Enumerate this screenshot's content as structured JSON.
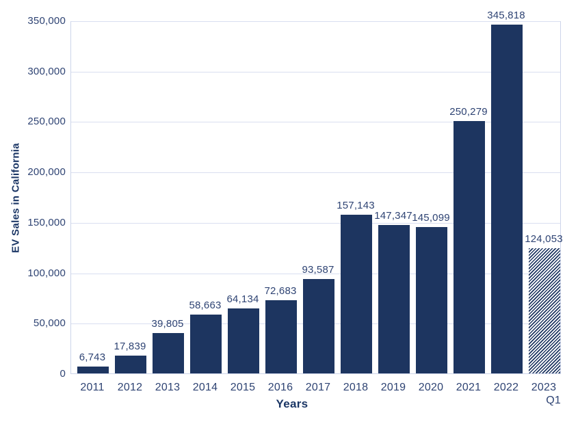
{
  "chart_data": {
    "type": "bar",
    "title": "",
    "categories": [
      "2011",
      "2012",
      "2013",
      "2014",
      "2015",
      "2016",
      "2017",
      "2018",
      "2019",
      "2020",
      "2021",
      "2022",
      "2023"
    ],
    "final_category_sub_label": "Q1",
    "values": [
      6743,
      17839,
      39805,
      58663,
      64134,
      72683,
      93587,
      157143,
      147347,
      145099,
      250279,
      345818,
      124053
    ],
    "value_labels": [
      "6,743",
      "17,839",
      "39,805",
      "58,663",
      "64,134",
      "72,683",
      "93,587",
      "157,143",
      "147,347",
      "145,099",
      "250,279",
      "345,818",
      "124,053"
    ],
    "xlabel": "Years",
    "ylabel": "EV Sales in California",
    "ylim": [
      0,
      350000
    ],
    "ytick_interval": 50000,
    "ytick_values": [
      0,
      50000,
      100000,
      150000,
      200000,
      250000,
      300000,
      350000
    ],
    "ytick_labels": [
      "0",
      "50,000",
      "100,000",
      "150,000",
      "200,000",
      "250,000",
      "300,000",
      "350,000"
    ],
    "grid": true,
    "legend": "none",
    "last_bar_style": "diagonal-hatch",
    "colors": {
      "bar": "#1d3560",
      "tick_label": "#2e4373",
      "axis_title": "#1b3665",
      "gridline": "#d9def0",
      "frame": "#ccd4ea",
      "background": "#ffffff"
    }
  }
}
